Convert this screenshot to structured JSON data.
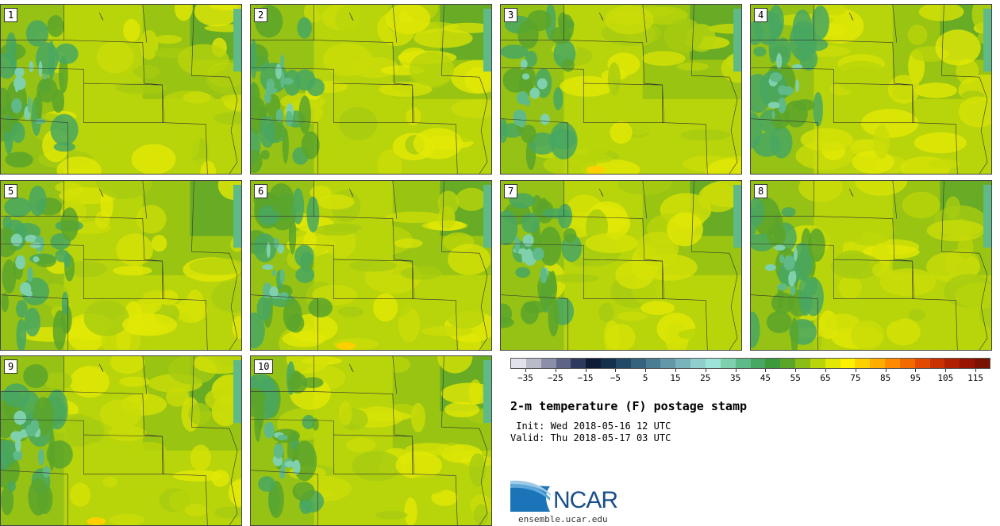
{
  "panels": [
    {
      "label": "1"
    },
    {
      "label": "2"
    },
    {
      "label": "3"
    },
    {
      "label": "4"
    },
    {
      "label": "5"
    },
    {
      "label": "6"
    },
    {
      "label": "7"
    },
    {
      "label": "8"
    },
    {
      "label": "9"
    },
    {
      "label": "10"
    }
  ],
  "colorbar": {
    "colors": [
      "#e2e2ea",
      "#b9bbc9",
      "#8b90a8",
      "#5d6485",
      "#2d3a5d",
      "#0f1c38",
      "#14304d",
      "#224a66",
      "#35637d",
      "#4b7d92",
      "#6298a8",
      "#79b3bc",
      "#8ecfcd",
      "#9ee3d8",
      "#7fd0ad",
      "#5fba87",
      "#48a761",
      "#3d9a3c",
      "#5ba52a",
      "#8cbd16",
      "#b8d40a",
      "#e2e805",
      "#fff200",
      "#ffd000",
      "#ffad00",
      "#ff8a00",
      "#f26b00",
      "#e14a00",
      "#c93200",
      "#b02000",
      "#961400",
      "#7b1100"
    ],
    "tick_labels": [
      "−35",
      "−25",
      "−15",
      "−5",
      "5",
      "15",
      "25",
      "35",
      "45",
      "55",
      "65",
      "75",
      "85",
      "95",
      "105",
      "115"
    ],
    "min": -40,
    "max": 120
  },
  "title": "2-m temperature (F) postage stamp",
  "init": " Init: Wed 2018-05-16 12 UTC",
  "valid": "Valid: Thu 2018-05-17 03 UTC",
  "logo": {
    "text": "NCAR",
    "url": "ensemble.ucar.edu"
  }
}
